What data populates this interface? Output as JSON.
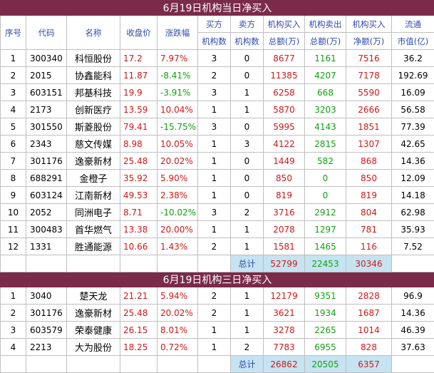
{
  "section1": {
    "title": "6月19日机构当日净买入",
    "headers": {
      "no": "序号",
      "code": "代码",
      "name": "名称",
      "close": "收盘价",
      "change": "涨跌幅",
      "buyers_top": "买方",
      "buyers_bottom": "机构数",
      "sellers_top": "卖方",
      "sellers_bottom": "机构数",
      "buy_top": "机构买入",
      "buy_bottom": "总额(万)",
      "sell_top": "机构卖出",
      "sell_bottom": "总额(万)",
      "net_top": "机构买入",
      "net_bottom": "净额(万)",
      "cap_top": "流通",
      "cap_bottom": "市值(亿)"
    },
    "rows": [
      {
        "no": "1",
        "code": "300340",
        "name": "科恒股份",
        "close": "17.2",
        "change": "7.97%",
        "buyers": "3",
        "sellers": "0",
        "buy": "8677",
        "sell": "1161",
        "net": "7516",
        "cap": "36.2"
      },
      {
        "no": "2",
        "code": "2015",
        "name": "协鑫能科",
        "close": "11.87",
        "change": "-8.41%",
        "buyers": "2",
        "sellers": "0",
        "buy": "11385",
        "sell": "4207",
        "net": "7178",
        "cap": "192.69"
      },
      {
        "no": "3",
        "code": "603151",
        "name": "邦基科技",
        "close": "19.9",
        "change": "-3.91%",
        "buyers": "3",
        "sellers": "1",
        "buy": "6258",
        "sell": "668",
        "net": "5590",
        "cap": "16.09"
      },
      {
        "no": "4",
        "code": "2173",
        "name": "创新医疗",
        "close": "13.59",
        "change": "10.04%",
        "buyers": "1",
        "sellers": "1",
        "buy": "5870",
        "sell": "3203",
        "net": "2666",
        "cap": "56.58"
      },
      {
        "no": "5",
        "code": "301550",
        "name": "斯菱股份",
        "close": "79.41",
        "change": "-15.75%",
        "buyers": "3",
        "sellers": "0",
        "buy": "5995",
        "sell": "4143",
        "net": "1851",
        "cap": "77.39"
      },
      {
        "no": "6",
        "code": "2343",
        "name": "慈文传媒",
        "close": "8.98",
        "change": "10.05%",
        "buyers": "1",
        "sellers": "3",
        "buy": "4122",
        "sell": "2815",
        "net": "1307",
        "cap": "42.65"
      },
      {
        "no": "7",
        "code": "301176",
        "name": "逸豪新材",
        "close": "25.48",
        "change": "20.02%",
        "buyers": "1",
        "sellers": "0",
        "buy": "1449",
        "sell": "582",
        "net": "868",
        "cap": "14.36"
      },
      {
        "no": "8",
        "code": "688291",
        "name": "金橙子",
        "close": "35.92",
        "change": "5.90%",
        "buyers": "1",
        "sellers": "0",
        "buy": "850",
        "sell": "0",
        "net": "850",
        "cap": "12.09"
      },
      {
        "no": "9",
        "code": "603124",
        "name": "江南新材",
        "close": "49.53",
        "change": "2.38%",
        "buyers": "1",
        "sellers": "0",
        "buy": "819",
        "sell": "0",
        "net": "819",
        "cap": "14.18"
      },
      {
        "no": "10",
        "code": "2052",
        "name": "同洲电子",
        "close": "8.71",
        "change": "-10.02%",
        "buyers": "3",
        "sellers": "2",
        "buy": "3716",
        "sell": "2912",
        "net": "804",
        "cap": "62.98"
      },
      {
        "no": "11",
        "code": "300483",
        "name": "首华燃气",
        "close": "13.38",
        "change": "20.00%",
        "buyers": "1",
        "sellers": "1",
        "buy": "2078",
        "sell": "1297",
        "net": "781",
        "cap": "35.93"
      },
      {
        "no": "12",
        "code": "1331",
        "name": "胜通能源",
        "close": "10.66",
        "change": "1.43%",
        "buyers": "2",
        "sellers": "1",
        "buy": "1581",
        "sell": "1465",
        "net": "116",
        "cap": "7.52"
      }
    ],
    "total": {
      "label": "总计",
      "buy": "52799",
      "sell": "22453",
      "net": "30346"
    }
  },
  "section2": {
    "title": "6月19日机构三日净买入",
    "rows": [
      {
        "no": "1",
        "code": "3040",
        "name": "楚天龙",
        "close": "21.21",
        "change": "5.94%",
        "buyers": "2",
        "sellers": "1",
        "buy": "12179",
        "sell": "9351",
        "net": "2828",
        "cap": "96.9"
      },
      {
        "no": "2",
        "code": "301176",
        "name": "逸豪新材",
        "close": "25.48",
        "change": "20.02%",
        "buyers": "2",
        "sellers": "1",
        "buy": "3621",
        "sell": "1934",
        "net": "1687",
        "cap": "14.36"
      },
      {
        "no": "3",
        "code": "603579",
        "name": "荣泰健康",
        "close": "26.15",
        "change": "8.01%",
        "buyers": "1",
        "sellers": "1",
        "buy": "3278",
        "sell": "2265",
        "net": "1014",
        "cap": "46.39"
      },
      {
        "no": "4",
        "code": "2213",
        "name": "大为股份",
        "close": "18.25",
        "change": "0.72%",
        "buyers": "1",
        "sellers": "2",
        "buy": "7783",
        "sell": "6955",
        "net": "828",
        "cap": "37.63"
      }
    ],
    "total": {
      "label": "总计",
      "buy": "26862",
      "sell": "20505",
      "net": "6357"
    }
  },
  "colors": {
    "title_bg": "#7a2b49",
    "total_bg": "#c5e3f1",
    "up": "#d01818",
    "down": "#11a011",
    "header_text": "#2f4bb0"
  }
}
